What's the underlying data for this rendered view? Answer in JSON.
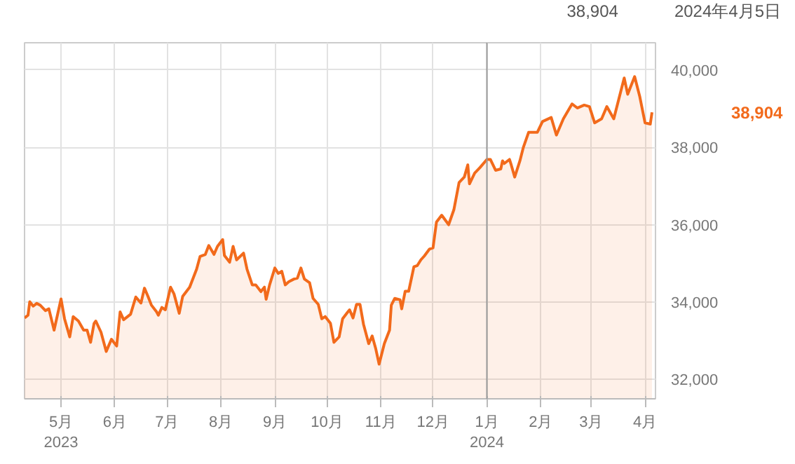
{
  "chart_data": {
    "type": "area",
    "x": [
      "2023-04-10",
      "2023-04-12",
      "2023-04-13",
      "2023-04-15",
      "2023-04-17",
      "2023-04-19",
      "2023-04-22",
      "2023-04-24",
      "2023-04-27",
      "2023-05-01",
      "2023-05-03",
      "2023-05-06",
      "2023-05-08",
      "2023-05-11",
      "2023-05-14",
      "2023-05-16",
      "2023-05-18",
      "2023-05-20",
      "2023-05-21",
      "2023-05-24",
      "2023-05-27",
      "2023-05-30",
      "2023-06-02",
      "2023-06-04",
      "2023-06-06",
      "2023-06-10",
      "2023-06-13",
      "2023-06-16",
      "2023-06-18",
      "2023-06-20",
      "2023-06-22",
      "2023-06-25",
      "2023-06-26",
      "2023-06-28",
      "2023-06-30",
      "2023-07-03",
      "2023-07-05",
      "2023-07-08",
      "2023-07-10",
      "2023-07-14",
      "2023-07-18",
      "2023-07-20",
      "2023-07-23",
      "2023-07-25",
      "2023-07-28",
      "2023-07-30",
      "2023-08-02",
      "2023-08-03",
      "2023-08-06",
      "2023-08-08",
      "2023-08-10",
      "2023-08-14",
      "2023-08-16",
      "2023-08-19",
      "2023-08-21",
      "2023-08-24",
      "2023-08-26",
      "2023-08-27",
      "2023-08-29",
      "2023-09-01",
      "2023-09-03",
      "2023-09-05",
      "2023-09-07",
      "2023-09-09",
      "2023-09-12",
      "2023-09-14",
      "2023-09-16",
      "2023-09-18",
      "2023-09-21",
      "2023-09-23",
      "2023-09-26",
      "2023-09-28",
      "2023-09-30",
      "2023-10-03",
      "2023-10-05",
      "2023-10-08",
      "2023-10-10",
      "2023-10-13",
      "2023-10-14",
      "2023-10-16",
      "2023-10-18",
      "2023-10-20",
      "2023-10-22",
      "2023-10-25",
      "2023-10-27",
      "2023-10-29",
      "2023-10-31",
      "2023-11-03",
      "2023-11-06",
      "2023-11-07",
      "2023-11-09",
      "2023-11-12",
      "2023-11-13",
      "2023-11-15",
      "2023-11-17",
      "2023-11-20",
      "2023-11-22",
      "2023-11-24",
      "2023-11-26",
      "2023-11-29",
      "2023-12-01",
      "2023-12-03",
      "2023-12-06",
      "2023-12-10",
      "2023-12-13",
      "2023-12-16",
      "2023-12-19",
      "2023-12-21",
      "2023-12-22",
      "2023-12-25",
      "2023-12-28",
      "2024-01-01",
      "2024-01-03",
      "2024-01-06",
      "2024-01-09",
      "2024-01-10",
      "2024-01-11",
      "2024-01-14",
      "2024-01-15",
      "2024-01-17",
      "2024-01-20",
      "2024-01-22",
      "2024-01-25",
      "2024-01-30",
      "2024-02-02",
      "2024-02-07",
      "2024-02-10",
      "2024-02-14",
      "2024-02-19",
      "2024-02-22",
      "2024-02-26",
      "2024-02-29",
      "2024-03-03",
      "2024-03-07",
      "2024-03-10",
      "2024-03-14",
      "2024-03-20",
      "2024-03-22",
      "2024-03-26",
      "2024-03-29",
      "2024-04-01",
      "2024-04-04",
      "2024-04-05"
    ],
    "series": [
      {
        "color": "#f26a1b",
        "values": [
          33590,
          33660,
          34010,
          33895,
          33965,
          33920,
          33780,
          33825,
          33275,
          34080,
          33570,
          33100,
          33625,
          33510,
          33275,
          33275,
          32960,
          33450,
          33510,
          33220,
          32725,
          33040,
          32865,
          33745,
          33545,
          33685,
          34130,
          33975,
          34360,
          34150,
          33920,
          33745,
          33660,
          33860,
          33800,
          34385,
          34210,
          33710,
          34150,
          34385,
          34850,
          35180,
          35230,
          35460,
          35230,
          35440,
          35615,
          35205,
          35030,
          35440,
          35090,
          35265,
          34850,
          34445,
          34445,
          34270,
          34385,
          34070,
          34445,
          34880,
          34740,
          34795,
          34445,
          34525,
          34595,
          34620,
          34880,
          34595,
          34500,
          34095,
          33940,
          33570,
          33625,
          33450,
          32960,
          33100,
          33570,
          33745,
          33800,
          33590,
          33940,
          33940,
          33430,
          32925,
          33125,
          32805,
          32395,
          32925,
          33275,
          33920,
          34095,
          34060,
          33825,
          34280,
          34280,
          34910,
          34945,
          35090,
          35190,
          35370,
          35400,
          36070,
          36245,
          36000,
          36385,
          37090,
          37230,
          37545,
          37055,
          37335,
          37475,
          37685,
          37685,
          37405,
          37440,
          37650,
          37580,
          37685,
          37545,
          37230,
          37650,
          38000,
          38385,
          38385,
          38665,
          38770,
          38315,
          38735,
          39120,
          39015,
          39090,
          39050,
          38630,
          38735,
          39050,
          38735,
          39790,
          39370,
          39825,
          39300,
          38630,
          38600,
          38904
        ]
      }
    ],
    "xlim": [
      "2023-04-10",
      "2024-04-07"
    ],
    "xticks": [
      {
        "value": "2023-05-01",
        "label": "5月\n2023"
      },
      {
        "value": "2023-06-01",
        "label": "6月"
      },
      {
        "value": "2023-07-01",
        "label": "7月"
      },
      {
        "value": "2023-08-01",
        "label": "8月"
      },
      {
        "value": "2023-09-01",
        "label": "9月"
      },
      {
        "value": "2023-10-01",
        "label": "10月"
      },
      {
        "value": "2023-11-01",
        "label": "11月"
      },
      {
        "value": "2023-12-01",
        "label": "12月"
      },
      {
        "value": "2024-01-01",
        "label": "1月\n2024"
      },
      {
        "value": "2024-02-01",
        "label": "2月"
      },
      {
        "value": "2024-03-01",
        "label": "3月"
      },
      {
        "value": "2024-04-01",
        "label": "4月"
      }
    ],
    "ylim": [
      31500,
      40700
    ],
    "yticks": [
      {
        "value": 32000,
        "label": "32,000"
      },
      {
        "value": 34000,
        "label": "34,000"
      },
      {
        "value": 36000,
        "label": "36,000"
      },
      {
        "value": 38000,
        "label": "38,000"
      },
      {
        "value": 40000,
        "label": "40,000"
      }
    ],
    "grid": true,
    "ref_lines": [
      {
        "axis": "x",
        "value": "2024-01-01",
        "color": "#9a9a9a"
      }
    ],
    "annotations": [
      "38,904",
      "2024年4月5日",
      "38,904"
    ]
  }
}
